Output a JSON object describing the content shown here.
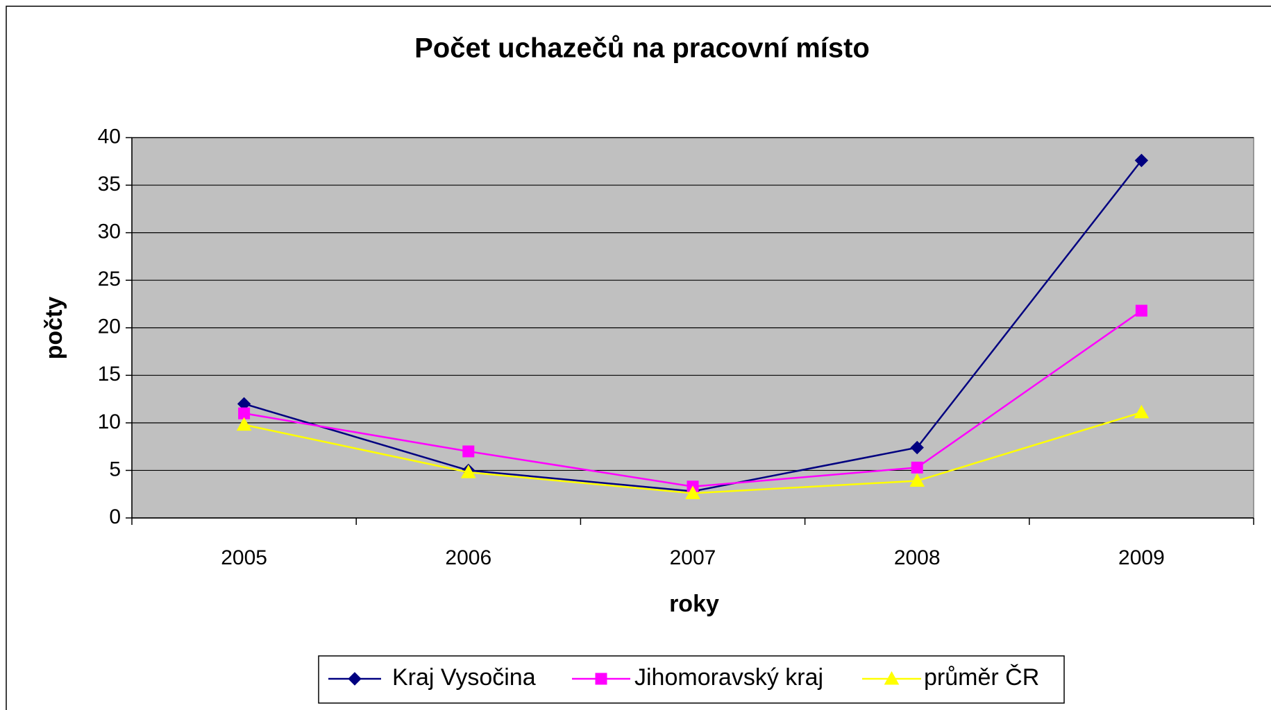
{
  "chart_data": {
    "type": "line",
    "title": "Počet uchazečů na pracovní místo",
    "xlabel": "roky",
    "ylabel": "počty",
    "categories": [
      "2005",
      "2006",
      "2007",
      "2008",
      "2009"
    ],
    "series": [
      {
        "name": "Kraj Vysočina",
        "color": "#000080",
        "marker": "diamond",
        "values": [
          12,
          5,
          2.8,
          7.4,
          37.6
        ]
      },
      {
        "name": "Jihomoravský kraj",
        "color": "#ff00ff",
        "marker": "square",
        "values": [
          11,
          7,
          3.3,
          5.3,
          21.8
        ]
      },
      {
        "name": "průměr ČR",
        "color": "#ffff00",
        "marker": "triangle",
        "values": [
          9.8,
          4.8,
          2.6,
          3.9,
          11.1
        ]
      }
    ],
    "ylim": [
      0,
      40
    ],
    "yticks": [
      0,
      5,
      10,
      15,
      20,
      25,
      30,
      35,
      40
    ],
    "grid": true,
    "legend": "bottom",
    "plot_background": "#c0c0c0"
  }
}
